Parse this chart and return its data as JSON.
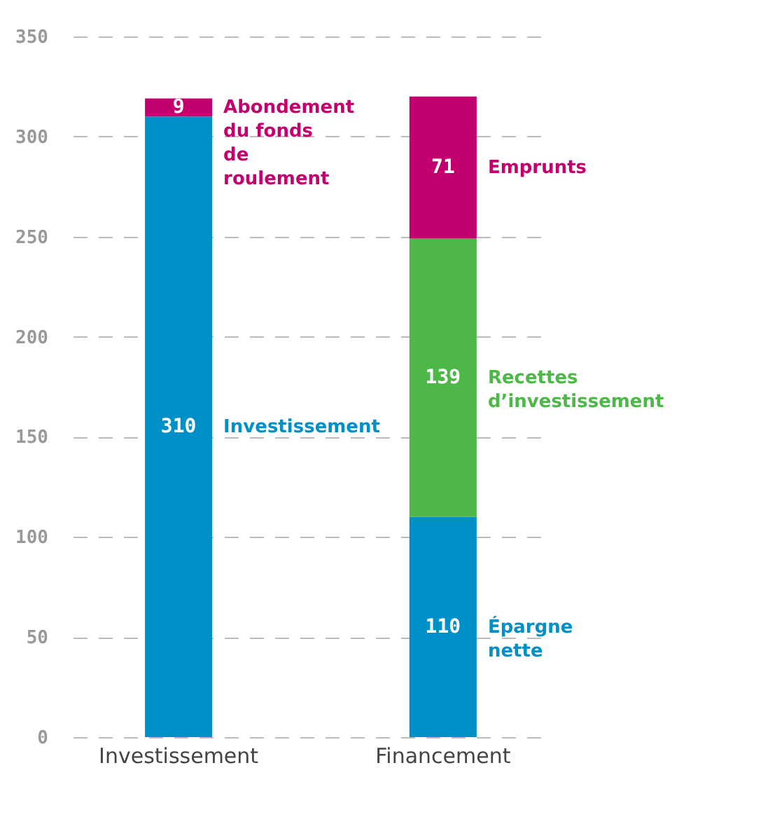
{
  "chart_data": {
    "type": "bar",
    "stacked": true,
    "categories": [
      "Investissement",
      "Financement"
    ],
    "series": [
      {
        "name": "Investissement",
        "color": "#0090c8",
        "values": [
          310,
          null
        ]
      },
      {
        "name": "Abondement du fonds de roulement",
        "color": "#c4006e",
        "values": [
          9,
          null
        ]
      },
      {
        "name": "Épargne nette",
        "color": "#0090c8",
        "values": [
          null,
          110
        ]
      },
      {
        "name": "Recettes d’investissement",
        "color": "#4db848",
        "values": [
          null,
          139
        ]
      },
      {
        "name": "Emprunts",
        "color": "#c4006e",
        "values": [
          null,
          71
        ]
      }
    ],
    "ylim": [
      0,
      350
    ],
    "yticks": [
      0,
      50,
      100,
      150,
      200,
      250,
      300,
      350
    ],
    "grid": "y",
    "data_labels": true
  }
}
